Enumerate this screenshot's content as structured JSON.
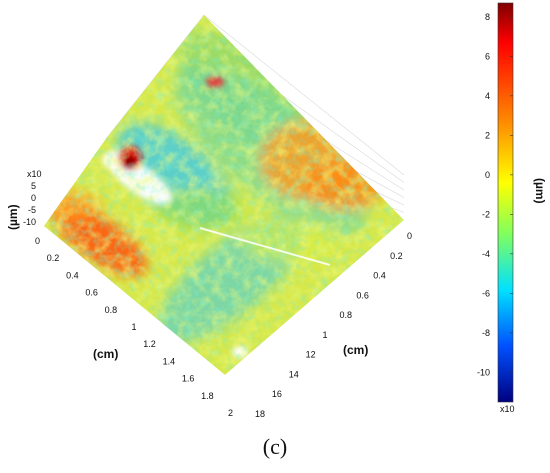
{
  "panel_label": "(c)",
  "chart_data": {
    "type": "surface3d",
    "title": "",
    "x_axis": {
      "label": "(cm)",
      "ticks": [
        "0",
        "0.2",
        "0.4",
        "0.6",
        "0.8",
        "1",
        "1.2",
        "1.4",
        "1.6",
        "1.8",
        "2"
      ],
      "range": [
        0,
        2
      ]
    },
    "y_axis": {
      "label": "(cm)",
      "ticks": [
        "0",
        "0.2",
        "0.4",
        "0.6",
        "0.8",
        "1",
        "12",
        "14",
        "16",
        "18"
      ]
    },
    "z_axis": {
      "label": "(µm)",
      "multiplier_label": "x10",
      "ticks": [
        "5",
        "0",
        "-5",
        "-10"
      ],
      "range": [
        -10,
        5
      ]
    },
    "colorbar": {
      "label": "(µm)",
      "multiplier_label": "x10",
      "ticks": [
        "8",
        "6",
        "4",
        "2",
        "0",
        "-2",
        "-4",
        "-6",
        "-8",
        "-10"
      ],
      "range": [
        -11.5,
        8.7
      ],
      "colormap": "jet"
    },
    "surface_features": [
      {
        "name": "peak",
        "x": 0.2,
        "y": 0.3,
        "z": 8
      },
      {
        "name": "elevated-band",
        "x": 1.0,
        "y": 0.2,
        "z": 4
      },
      {
        "name": "elevated-region",
        "x": 0.5,
        "y": 1.5,
        "z": 4
      },
      {
        "name": "scratch-valley",
        "x": 1.0,
        "y": 1.2,
        "z": -5
      }
    ],
    "grid": true
  }
}
